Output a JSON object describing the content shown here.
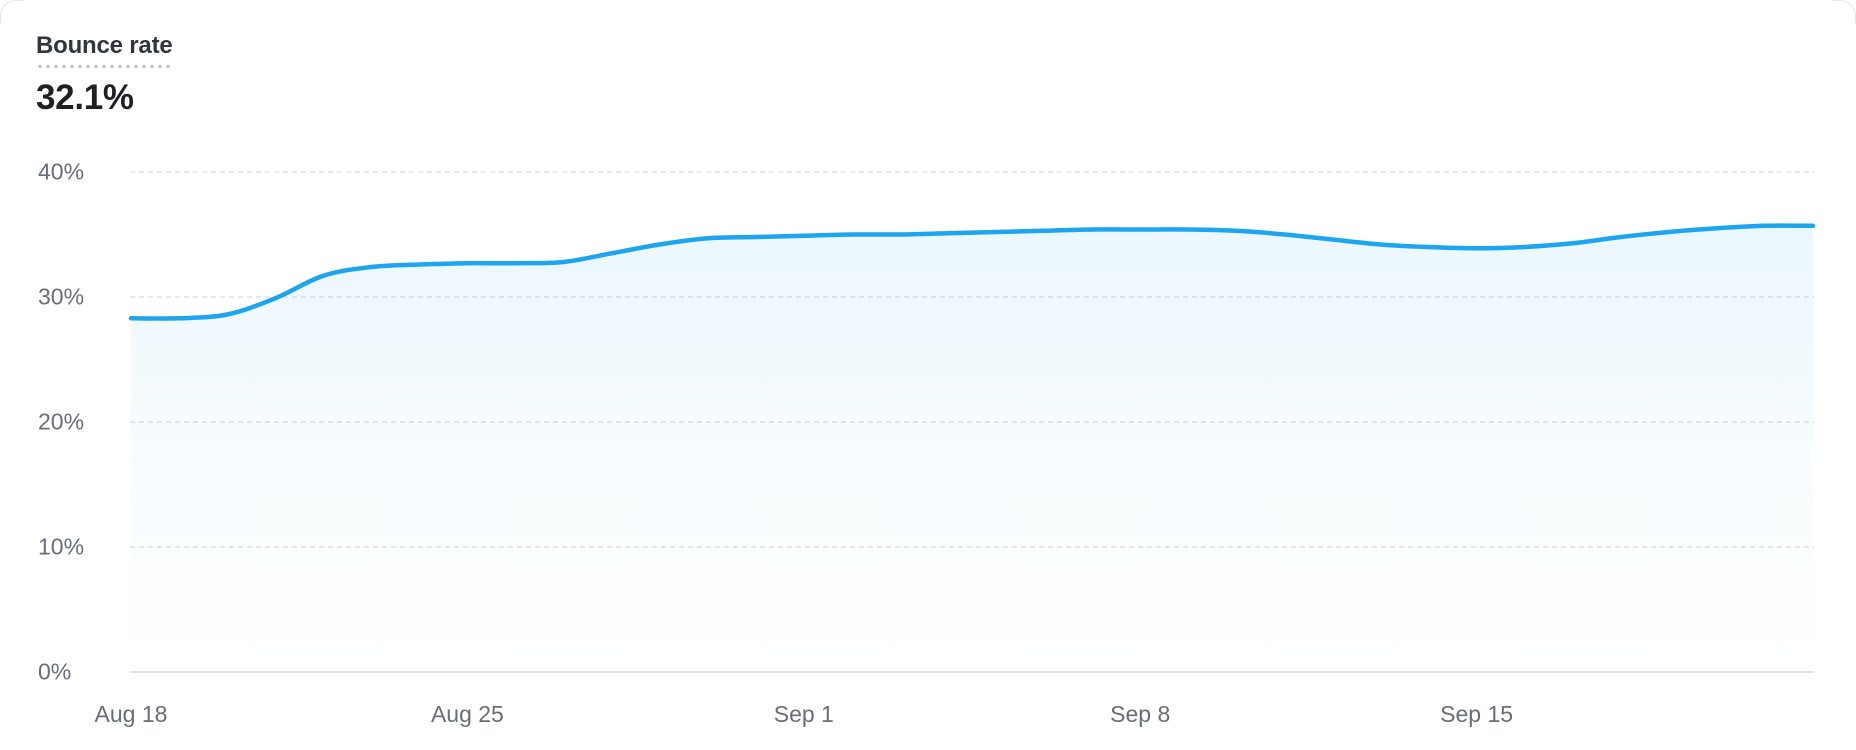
{
  "header": {
    "title": "Bounce rate",
    "value": "32.1%"
  },
  "colors": {
    "line": "#1ea5ef",
    "area_fade_top_opacity": "0.09",
    "grid": "#e7e8eb",
    "axis_baseline": "#e2e3e7",
    "tick_label": "#686d77",
    "title_text": "#32353b",
    "value_text": "#1e2025",
    "title_underline_dots": "#c0c3c9"
  },
  "chart_data": {
    "type": "area",
    "title": "Bounce rate",
    "series_name": "Bounce rate",
    "x": [
      "Aug 18",
      "Aug 19",
      "Aug 20",
      "Aug 21",
      "Aug 22",
      "Aug 23",
      "Aug 24",
      "Aug 25",
      "Aug 26",
      "Aug 27",
      "Aug 28",
      "Aug 29",
      "Aug 30",
      "Aug 31",
      "Sep 1",
      "Sep 2",
      "Sep 3",
      "Sep 4",
      "Sep 5",
      "Sep 6",
      "Sep 7",
      "Sep 8",
      "Sep 9",
      "Sep 10",
      "Sep 11",
      "Sep 12",
      "Sep 13",
      "Sep 14",
      "Sep 15",
      "Sep 16",
      "Sep 17",
      "Sep 18",
      "Sep 19",
      "Sep 20",
      "Sep 21",
      "Sep 22"
    ],
    "values": [
      28.3,
      28.3,
      28.6,
      29.9,
      31.7,
      32.4,
      32.6,
      32.7,
      32.7,
      32.8,
      33.5,
      34.2,
      34.7,
      34.8,
      34.9,
      35.0,
      35.0,
      35.1,
      35.2,
      35.3,
      35.4,
      35.4,
      35.4,
      35.3,
      35.0,
      34.6,
      34.2,
      34.0,
      33.9,
      34.0,
      34.3,
      34.8,
      35.2,
      35.5,
      35.7,
      35.7
    ],
    "xlabel": "",
    "ylabel": "",
    "ylim": [
      0,
      40
    ],
    "yticks": [
      0,
      10,
      20,
      30,
      40
    ],
    "ytick_suffix": "%",
    "xtick_positions": [
      0,
      7,
      14,
      21,
      28
    ],
    "xtick_labels": [
      "Aug 18",
      "Aug 25",
      "Sep 1",
      "Sep 8",
      "Sep 15"
    ],
    "grid": "horizontal-dashed, solid zero baseline",
    "legend": "none"
  }
}
